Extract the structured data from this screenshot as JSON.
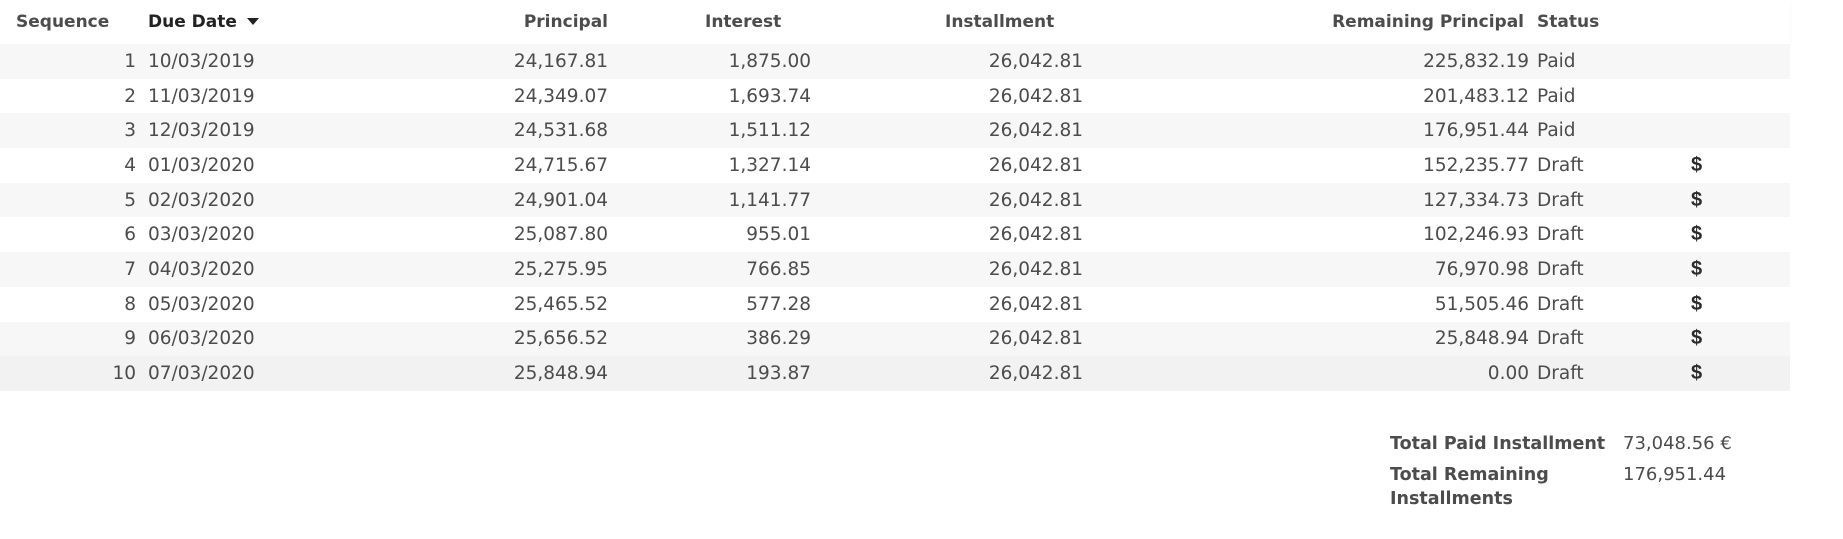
{
  "table": {
    "headers": {
      "sequence": "Sequence",
      "due_date": "Due Date",
      "principal": "Principal",
      "interest": "Interest",
      "installment": "Installment",
      "remaining_principal": "Remaining Principal",
      "status": "Status"
    },
    "sort": {
      "column": "due_date",
      "direction": "descending",
      "icon": "caret-down-icon"
    },
    "action_icon": "dollar-icon",
    "action_glyph": "$",
    "rows": [
      {
        "sequence": "1",
        "due_date": "10/03/2019",
        "principal": "24,167.81",
        "interest": "1,875.00",
        "installment": "26,042.81",
        "remaining_principal": "225,832.19",
        "status": "Paid",
        "action": ""
      },
      {
        "sequence": "2",
        "due_date": "11/03/2019",
        "principal": "24,349.07",
        "interest": "1,693.74",
        "installment": "26,042.81",
        "remaining_principal": "201,483.12",
        "status": "Paid",
        "action": ""
      },
      {
        "sequence": "3",
        "due_date": "12/03/2019",
        "principal": "24,531.68",
        "interest": "1,511.12",
        "installment": "26,042.81",
        "remaining_principal": "176,951.44",
        "status": "Paid",
        "action": ""
      },
      {
        "sequence": "4",
        "due_date": "01/03/2020",
        "principal": "24,715.67",
        "interest": "1,327.14",
        "installment": "26,042.81",
        "remaining_principal": "152,235.77",
        "status": "Draft",
        "action": "$"
      },
      {
        "sequence": "5",
        "due_date": "02/03/2020",
        "principal": "24,901.04",
        "interest": "1,141.77",
        "installment": "26,042.81",
        "remaining_principal": "127,334.73",
        "status": "Draft",
        "action": "$"
      },
      {
        "sequence": "6",
        "due_date": "03/03/2020",
        "principal": "25,087.80",
        "interest": "955.01",
        "installment": "26,042.81",
        "remaining_principal": "102,246.93",
        "status": "Draft",
        "action": "$"
      },
      {
        "sequence": "7",
        "due_date": "04/03/2020",
        "principal": "25,275.95",
        "interest": "766.85",
        "installment": "26,042.81",
        "remaining_principal": "76,970.98",
        "status": "Draft",
        "action": "$"
      },
      {
        "sequence": "8",
        "due_date": "05/03/2020",
        "principal": "25,465.52",
        "interest": "577.28",
        "installment": "26,042.81",
        "remaining_principal": "51,505.46",
        "status": "Draft",
        "action": "$"
      },
      {
        "sequence": "9",
        "due_date": "06/03/2020",
        "principal": "25,656.52",
        "interest": "386.29",
        "installment": "26,042.81",
        "remaining_principal": "25,848.94",
        "status": "Draft",
        "action": "$"
      },
      {
        "sequence": "10",
        "due_date": "07/03/2020",
        "principal": "25,848.94",
        "interest": "193.87",
        "installment": "26,042.81",
        "remaining_principal": "0.00",
        "status": "Draft",
        "action": "$"
      }
    ]
  },
  "totals": {
    "paid_label": "Total Paid Installment",
    "paid_value": "73,048.56 €",
    "remaining_label": "Total Remaining Installments",
    "remaining_value": "176,951.44"
  },
  "colors": {
    "text": "#4c4c4c",
    "header_sorted": "#222222",
    "row_stripe": "#f7f7f7",
    "row_last": "#f2f2f2"
  }
}
